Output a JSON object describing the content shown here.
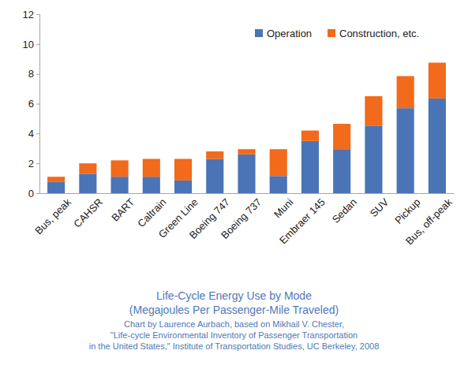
{
  "chart_data": {
    "type": "bar",
    "stacked": true,
    "grid": false,
    "legend": "upper right",
    "title": "Life-Cycle Energy Use by Mode",
    "subtitle": "(Megajoules Per Passenger-Mile Traveled)",
    "annotations": [
      "Chart by Laurence Aurbach, based on Mikhail V. Chester,",
      "\"Life-cycle Environmental Inventory of Passenger Transportation",
      "in the United States,\" Institute of Transportation Studies, UC Berkeley, 2008"
    ],
    "categories": [
      "Bus, peak",
      "CAHSR",
      "BART",
      "Caltrain",
      "Green Line",
      "Boeing 747",
      "Boeing 737",
      "Muni",
      "Embraer 145",
      "Sedan",
      "SUV",
      "Pickup",
      "Bus, off-peak"
    ],
    "series": [
      {
        "name": "Operation",
        "color": "#4a74b6",
        "values": [
          0.75,
          1.3,
          1.1,
          1.1,
          0.85,
          2.3,
          2.6,
          1.15,
          3.5,
          2.95,
          4.5,
          5.7,
          6.35
        ]
      },
      {
        "name": "Construction, etc.",
        "color": "#f26a1b",
        "values": [
          0.35,
          0.7,
          1.1,
          1.2,
          1.45,
          0.5,
          0.35,
          1.8,
          0.7,
          1.7,
          2.0,
          2.15,
          2.4
        ]
      }
    ],
    "ylim": [
      0,
      12
    ],
    "yticks": [
      0,
      2,
      4,
      6,
      8,
      10,
      12
    ]
  }
}
